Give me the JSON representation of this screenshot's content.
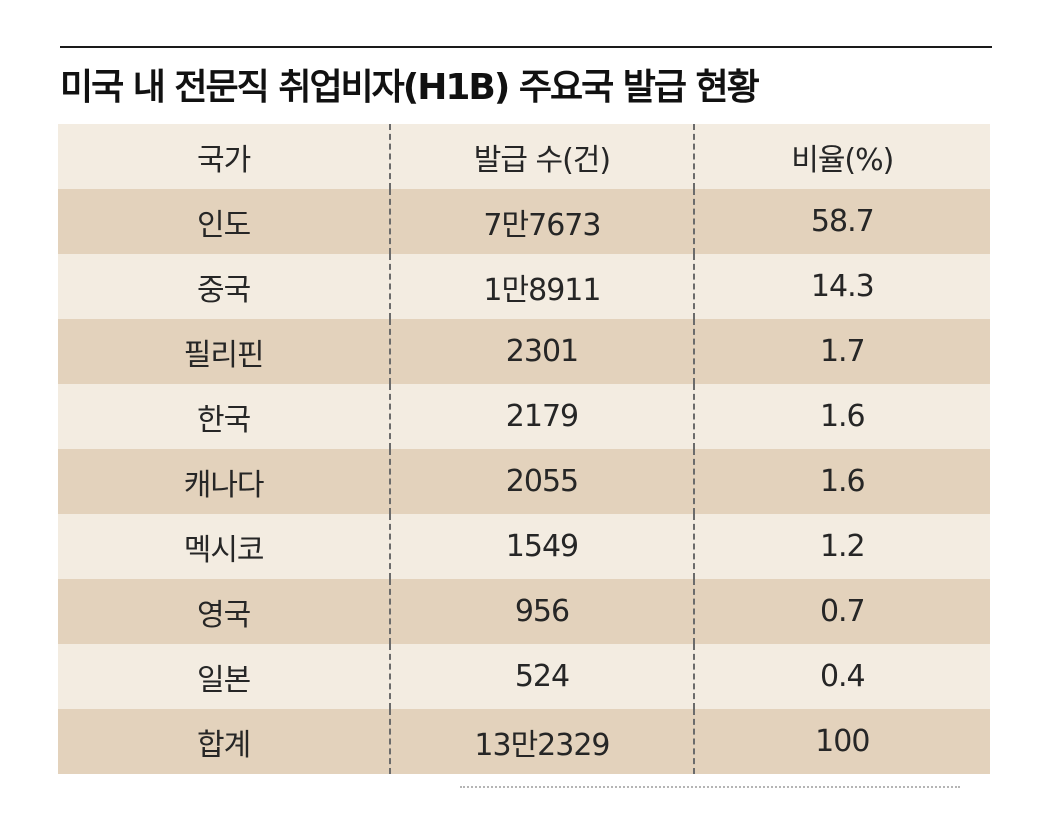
{
  "title": "미국 내 전문직 취업비자(H1B) 주요국 발급 현황",
  "table": {
    "headers": [
      "국가",
      "발급 수(건)",
      "비율(%)"
    ],
    "rows": [
      [
        "인도",
        "7만7673",
        "58.7"
      ],
      [
        "중국",
        "1만8911",
        "14.3"
      ],
      [
        "필리핀",
        "2301",
        "1.7"
      ],
      [
        "한국",
        "2179",
        "1.6"
      ],
      [
        "캐나다",
        "2055",
        "1.6"
      ],
      [
        "멕시코",
        "1549",
        "1.2"
      ],
      [
        "영국",
        "956",
        "0.7"
      ],
      [
        "일본",
        "524",
        "0.4"
      ],
      [
        "합계",
        "13만2329",
        "100"
      ]
    ]
  },
  "colors": {
    "row_light": "#f3ece1",
    "row_dark": "#e3d2bc",
    "divider": "#6b6b6b"
  }
}
